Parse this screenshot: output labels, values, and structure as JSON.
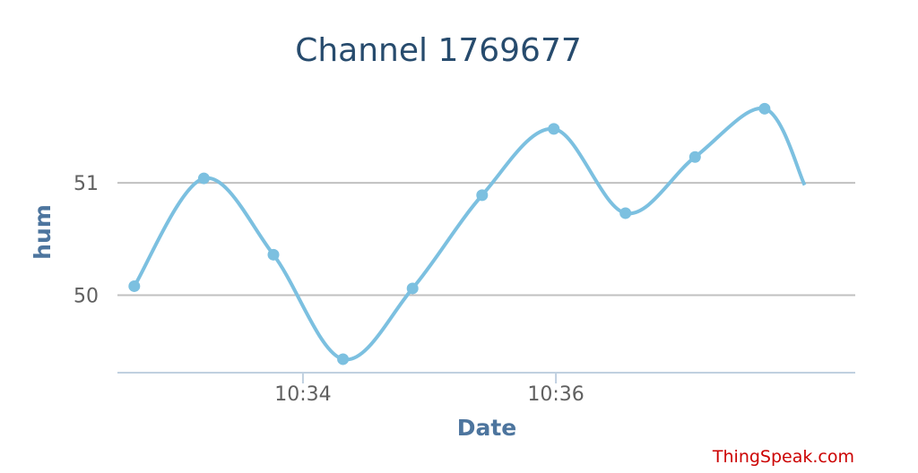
{
  "chart_data": {
    "type": "line",
    "title": "Channel 1769677",
    "xlabel": "Date",
    "ylabel": "hum",
    "x_tick_labels": [
      "10:34",
      "10:36"
    ],
    "y_tick_labels": [
      "50",
      "51"
    ],
    "ylim": [
      49.31,
      51.87
    ],
    "series": [
      {
        "color": "#7cc0e0",
        "points": [
          {
            "x": "10:32:40",
            "y": 50.08
          },
          {
            "x": "10:33:13",
            "y": 51.04
          },
          {
            "x": "10:33:46",
            "y": 50.36
          },
          {
            "x": "10:34:19",
            "y": 49.43
          },
          {
            "x": "10:34:52",
            "y": 50.06
          },
          {
            "x": "10:35:25",
            "y": 50.89
          },
          {
            "x": "10:35:59",
            "y": 51.48
          },
          {
            "x": "10:36:33",
            "y": 50.73
          },
          {
            "x": "10:37:06",
            "y": 51.23
          },
          {
            "x": "10:37:39",
            "y": 51.66
          },
          {
            "x": "10:37:58",
            "y": 50.98
          }
        ]
      }
    ],
    "grid": true
  },
  "credit": "ThingSpeak.com"
}
